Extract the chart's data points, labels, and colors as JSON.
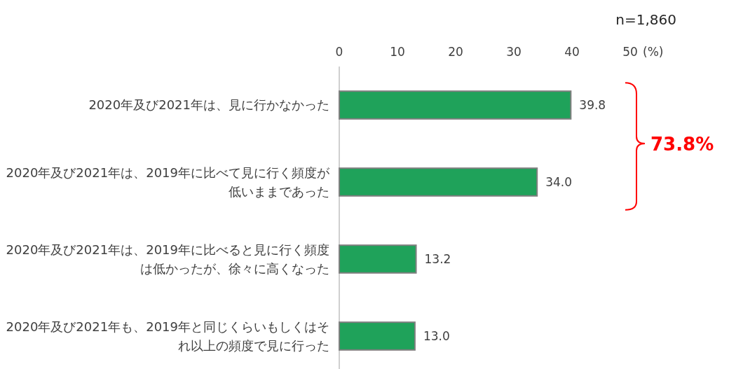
{
  "chart_data": {
    "type": "bar",
    "orientation": "horizontal",
    "categories": [
      "2020年及び2021年は、見に行かなかった",
      "2020年及び2021年は、2019年に比べて見に行く頻度が低いままであった",
      "2020年及び2021年は、2019年に比べると見に行く頻度は低かったが、徐々に高くなった",
      "2020年及び2021年も、2019年と同じくらいもしくはそれ以上の頻度で見に行った"
    ],
    "values": [
      39.8,
      34.0,
      13.2,
      13.0
    ],
    "value_labels": [
      "39.8",
      "34.0",
      "13.2",
      "13.0"
    ],
    "color": "#1fa25a",
    "xlim": [
      0,
      50
    ],
    "xticks": [
      0,
      10,
      20,
      30,
      40,
      50
    ],
    "xlabel": "(%)",
    "grid": false,
    "annotations": [
      "n=1,860",
      "73.8%"
    ]
  }
}
